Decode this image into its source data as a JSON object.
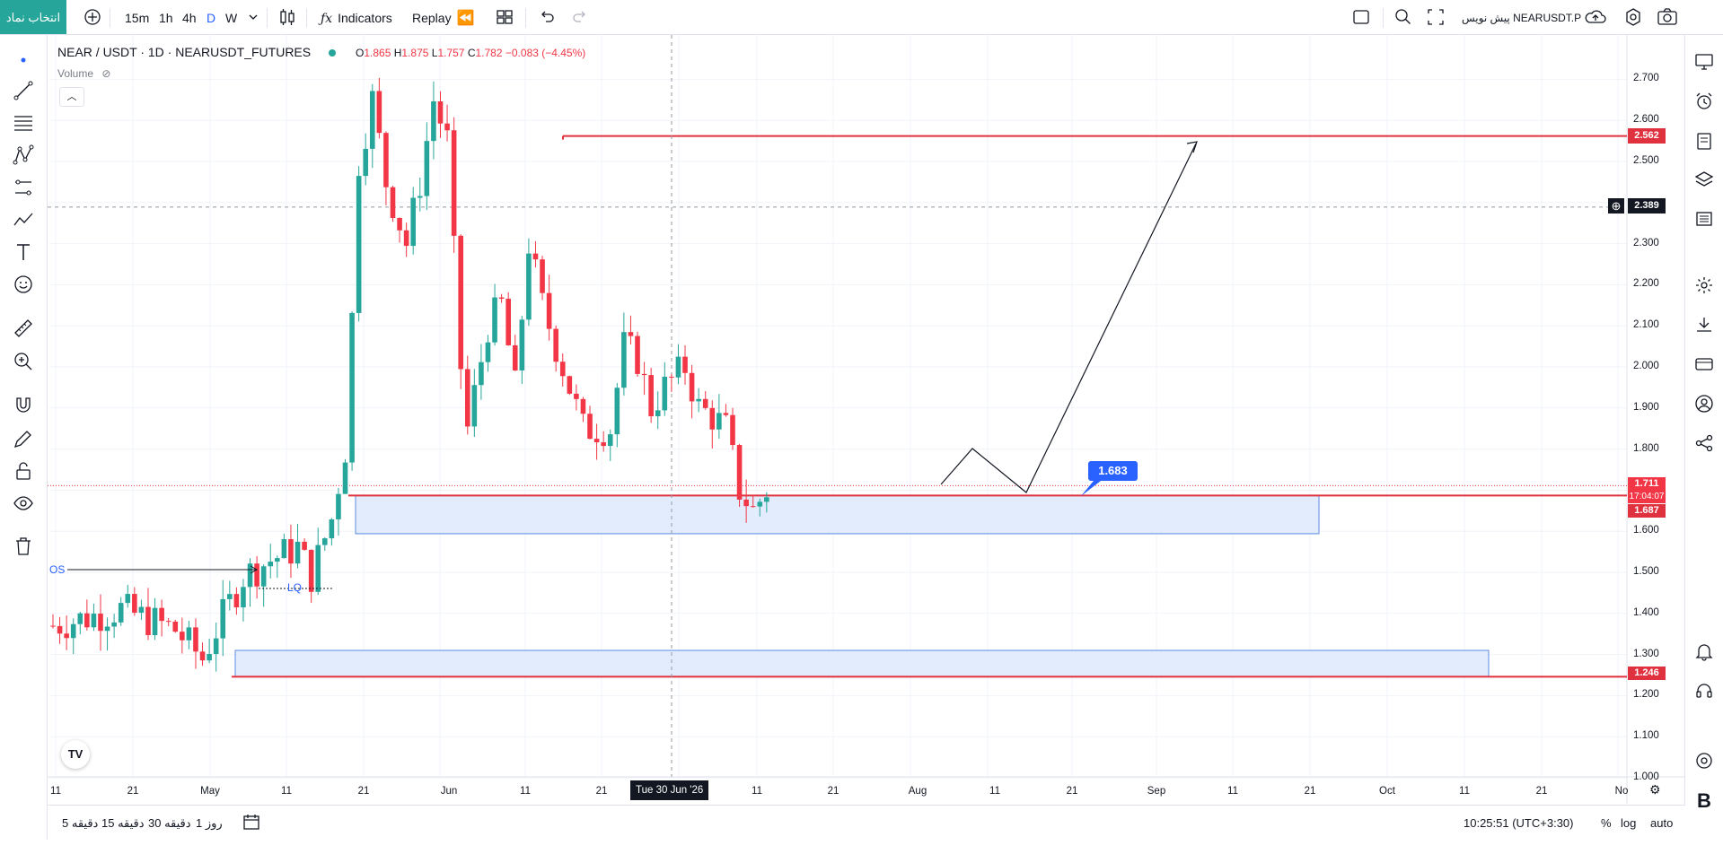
{
  "toolbar": {
    "symbol_search": "انتخاب نماد",
    "intervals": [
      "15m",
      "1h",
      "4h",
      "D",
      "W"
    ],
    "active_interval": "D",
    "indicators_label": "Indicators",
    "replay_label": "Replay",
    "symbol_right": "NEARUSDT.P",
    "publish_label": "پیش نویس"
  },
  "legend": {
    "title": "NEAR / USDT · 1D · NEARUSDT_FUTURES",
    "open_key": "O",
    "open": "1.865",
    "high_key": "H",
    "high": "1.875",
    "low_key": "L",
    "low": "1.757",
    "close_key": "C",
    "close": "1.782",
    "change": "−0.083 (−4.45%)",
    "volume_label": "Volume"
  },
  "price_axis": {
    "ticks": [
      "2.700",
      "2.600",
      "2.500",
      "2.300",
      "2.200",
      "2.100",
      "2.000",
      "1.900",
      "1.800",
      "1.600",
      "1.500",
      "1.400",
      "1.300",
      "1.200",
      "1.100",
      "1.000"
    ],
    "labels": {
      "top_level": "2.562",
      "crosshair": "2.389",
      "last_price": "1.711",
      "countdown": "17:04:07",
      "zone_level": "1.687",
      "bottom_level": "1.246"
    }
  },
  "time_axis": {
    "ticks": [
      "11",
      "21",
      "May",
      "11",
      "21",
      "Jun",
      "11",
      "21",
      "11",
      "21",
      "Aug",
      "11",
      "21",
      "Sep",
      "11",
      "21",
      "Oct",
      "11",
      "21",
      "No"
    ],
    "crosshair_date": "Tue 30 Jun '26"
  },
  "annotations": {
    "target_badge": "1.683",
    "os_label": "OS",
    "lq_label": "LQ"
  },
  "bottom": {
    "ranges": [
      "5 دقیقه",
      "15 دقیقه",
      "30 دقیقه",
      "1 روز"
    ],
    "clock": "10:25:51 (UTC+3:30)",
    "percent": "%",
    "log": "log",
    "auto": "auto"
  },
  "colors": {
    "up": "#26a69a",
    "down": "#f23645",
    "zone_fill": "#e3ecfd",
    "zone_border": "#5b8be0",
    "level_line": "#e0313f",
    "badge": "#2962ff"
  },
  "icons": [
    "plus-circle-icon",
    "candles-icon",
    "fx-icon",
    "rewind-icon",
    "layout-icon",
    "undo-icon",
    "redo-icon",
    "fullscreen-icon",
    "camera-icon",
    "settings-icon",
    "cloud-icon"
  ]
}
